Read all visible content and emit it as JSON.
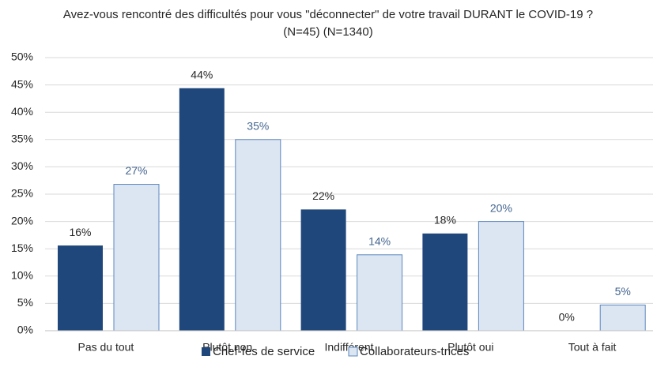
{
  "chart_data": {
    "type": "bar",
    "title": "Avez-vous rencontré des difficultés  pour vous \"déconnecter\" de votre travail DURANT le COVID-19 ? (N=45) (N=1340)",
    "categories": [
      "Pas du tout",
      "Plutôt non",
      "Indifférent",
      "Plutôt oui",
      "Tout à fait"
    ],
    "series": [
      {
        "name": "Chef-fes de service",
        "color": "#1f477b",
        "values": [
          15.6,
          44.4,
          22.2,
          17.8,
          0
        ],
        "value_labels": [
          "16%",
          "44%",
          "22%",
          "18%",
          "0%"
        ]
      },
      {
        "name": "Collaborateurs-trices",
        "color": "#dce6f2",
        "values": [
          26.8,
          35,
          13.9,
          20,
          4.7
        ],
        "value_labels": [
          "27%",
          "35%",
          "14%",
          "20%",
          "5%"
        ]
      }
    ],
    "ylim": [
      0,
      50
    ],
    "yticks": [
      {
        "value": 0,
        "label": "0%"
      },
      {
        "value": 5,
        "label": "5%"
      },
      {
        "value": 10,
        "label": "10%"
      },
      {
        "value": 15,
        "label": "15%"
      },
      {
        "value": 20,
        "label": "20%"
      },
      {
        "value": 25,
        "label": "25%"
      },
      {
        "value": 30,
        "label": "30%"
      },
      {
        "value": 35,
        "label": "35%"
      },
      {
        "value": 40,
        "label": "40%"
      },
      {
        "value": 45,
        "label": "45%"
      },
      {
        "value": 50,
        "label": "50%"
      }
    ],
    "grid": true,
    "legend": "bottom"
  }
}
